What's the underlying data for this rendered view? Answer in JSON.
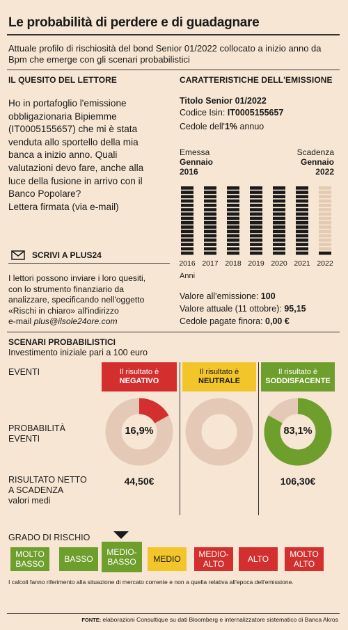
{
  "title": "Le probabilità di perdere e di guadagnare",
  "subtitle": "Attuale profilo di rischiosità del bond Senior 01/2022 collocato a inizio anno da Bpm che emerge con gli scenari probabilistici",
  "quesito": {
    "heading": "IL QUESITO DEL LETTORE",
    "lines": [
      "Ho in portafoglio l'emissione",
      "obbligazionaria Bipiemme",
      "(IT0005155657) che  mi è stata",
      "venduta allo sportello della mia",
      "banca a inizio anno. Quali",
      "valutazioni devo fare, anche alla",
      "luce della fusione in arrivo con il",
      "Banco Popolare?",
      "Lettera firmata (via e-mail)"
    ]
  },
  "scrivi": {
    "label": "SCRIVI A PLUS24",
    "lines": [
      "I lettori possono inviare i loro quesiti,",
      "con lo strumento finanziario da",
      "analizzare, specificando nell'oggetto",
      "«Rischi in chiaro» all'indirizzo"
    ],
    "email_prefix": "e-mail ",
    "email": "plus@ilsole24ore.com"
  },
  "caratteristiche": {
    "heading": "CARATTERISTICHE DELL'EMISSIONE",
    "titolo": "Titolo Senior 01/2022",
    "isin_label": "Codice Isin: ",
    "isin": "IT0005155657",
    "cedola_label": "Cedole dell'",
    "cedola_value": "1%",
    "cedola_suffix": " annuo",
    "emessa_label": "Emessa",
    "emessa_month": "Gennaio",
    "emessa_year": "2016",
    "scadenza_label": "Scadenza",
    "scadenza_month": "Gennaio",
    "scadenza_year": "2022",
    "anni_label": "Anni",
    "valore_emissione_label": "Valore all'emissione: ",
    "valore_emissione": "100",
    "valore_attuale_label": "Valore attuale (11 ottobre): ",
    "valore_attuale": "95,15",
    "cedole_pagate_label": "Cedole pagate finora: ",
    "cedole_pagate": "0,00 €"
  },
  "chart_data": [
    {
      "type": "bar",
      "categories": [
        "2016",
        "2017",
        "2018",
        "2019",
        "2020",
        "2021",
        "2022"
      ],
      "values": [
        100,
        100,
        100,
        100,
        100,
        100,
        100
      ],
      "status": [
        "solid",
        "solid",
        "solid",
        "solid",
        "solid",
        "solid",
        "light"
      ],
      "xlabel": "Anni",
      "colors": {
        "solid": "#1a1a1a",
        "light": "#e3cbb3"
      }
    },
    {
      "type": "pie",
      "labels": [
        "NEGATIVO",
        "NEUTRALE",
        "SODDISFACENTE"
      ],
      "values": [
        16.9,
        0,
        83.1
      ],
      "display": [
        "16,9%",
        "",
        "83,1%"
      ],
      "colors": {
        "negativo": "#d32f2f",
        "neutrale": "#f2c52b",
        "soddisfacente": "#6e9e2c",
        "rest": "#e3c9b6"
      }
    }
  ],
  "scenari": {
    "heading": "SCENARI PROBABILISTICI",
    "sub": "Investimento iniziale pari a 100 euro",
    "row_eventi": "EVENTI",
    "row_prob": [
      "PROBABILITÀ",
      "EVENTI"
    ],
    "row_ris": [
      "RISULTATO NETTO",
      "A SCADENZA"
    ],
    "row_ris_sub": "valori medi",
    "box_prefix": "Il risultato è",
    "cols": [
      {
        "name": "NEGATIVO",
        "prob": "16,9%",
        "result": "44,50€",
        "color": "#d32f2f",
        "text": "#ffffff"
      },
      {
        "name": "NEUTRALE",
        "prob": "",
        "result": "",
        "color": "#f2c52b",
        "text": "#1a1a1a"
      },
      {
        "name": "SODDISFACENTE",
        "prob": "83,1%",
        "result": "106,30€",
        "color": "#6e9e2c",
        "text": "#ffffff"
      }
    ]
  },
  "rischio": {
    "heading": "GRADO DI RISCHIO",
    "selected_index": 2,
    "items": [
      {
        "lines": [
          "MOLTO",
          "BASSO"
        ],
        "color": "#6e9e2c"
      },
      {
        "lines": [
          "BASSO"
        ],
        "color": "#6e9e2c"
      },
      {
        "lines": [
          "MEDIO-",
          "BASSO"
        ],
        "color": "#6e9e2c"
      },
      {
        "lines": [
          "MEDIO"
        ],
        "color": "#f2c52b"
      },
      {
        "lines": [
          "MEDIO-",
          "ALTO"
        ],
        "color": "#d32f2f"
      },
      {
        "lines": [
          "ALTO"
        ],
        "color": "#d32f2f"
      },
      {
        "lines": [
          "MOLTO",
          "ALTO"
        ],
        "color": "#d32f2f"
      }
    ]
  },
  "note": "I calcoli fanno riferimento alla situazione di mercato corrente e non a quella relativa all'epoca dell'emissione.",
  "fonte_label": "FONTE: ",
  "fonte": "elaborazioni Consultique su dati Bloomberg e internalizzatore sistematico di Banca Akros"
}
